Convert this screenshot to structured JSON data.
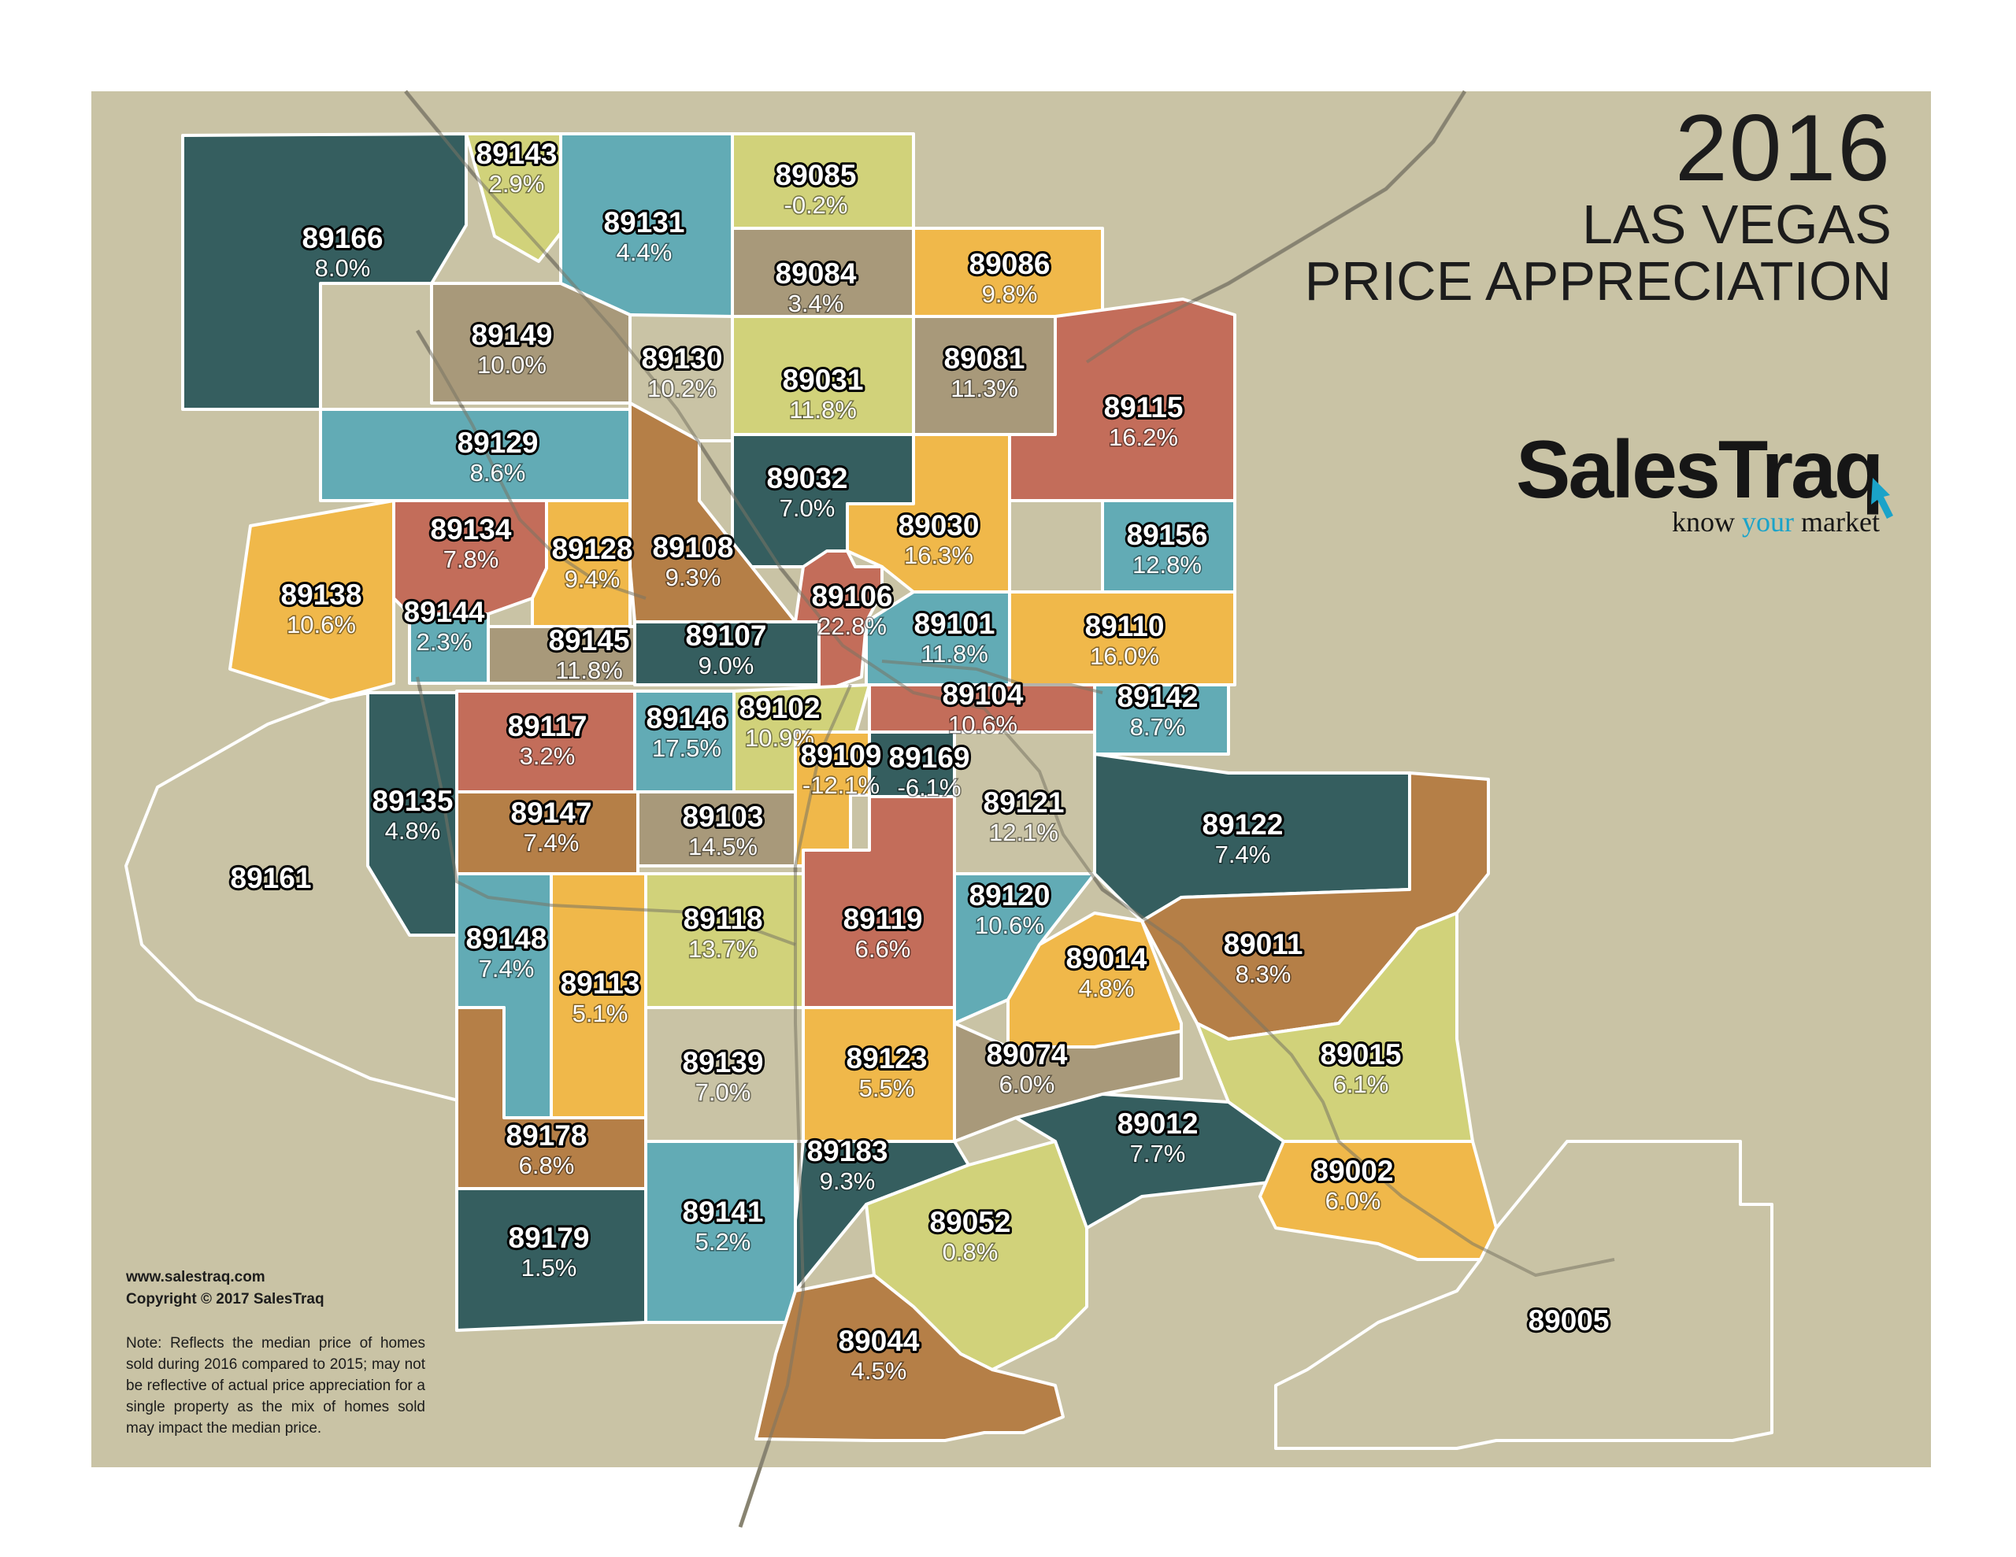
{
  "title": {
    "year": "2016",
    "line1": "LAS VEGAS",
    "line2": "PRICE APPRECIATION"
  },
  "brand": {
    "name": "SalesTraq",
    "tagline_a": "know ",
    "tagline_b": "your",
    "tagline_c": " market"
  },
  "footer": {
    "url": "www.salestraq.com",
    "copyright": "Copyright © 2017 SalesTraq",
    "note": "Note: Reflects the median price of homes sold during 2016 compared to 2015; may not be reflective of actual price appreciation for a single property as the mix of homes sold may impact the median price."
  },
  "colors": {
    "background": "#c9c3a5",
    "dark_teal": "#355e5f",
    "teal": "#62abb5",
    "yellow": "#f0b84a",
    "lime": "#d1d27a",
    "taupe": "#a8997a",
    "brick": "#c36d5a",
    "copper": "#b57f47",
    "light_taupe": "#c9c3a5",
    "border": "#ffffff",
    "road": "#9a9480",
    "accent": "#1aa3c9"
  },
  "zip_codes": [
    {
      "zip": "89166",
      "change": "8.0%",
      "color": "dark_teal"
    },
    {
      "zip": "89143",
      "change": "2.9%",
      "color": "lime"
    },
    {
      "zip": "89131",
      "change": "4.4%",
      "color": "teal"
    },
    {
      "zip": "89085",
      "change": "-0.2%",
      "color": "lime"
    },
    {
      "zip": "89084",
      "change": "3.4%",
      "color": "taupe"
    },
    {
      "zip": "89086",
      "change": "9.8%",
      "color": "yellow"
    },
    {
      "zip": "89149",
      "change": "10.0%",
      "color": "taupe"
    },
    {
      "zip": "89130",
      "change": "10.2%",
      "color": "light_taupe"
    },
    {
      "zip": "89031",
      "change": "11.8%",
      "color": "lime"
    },
    {
      "zip": "89081",
      "change": "11.3%",
      "color": "taupe"
    },
    {
      "zip": "89115",
      "change": "16.2%",
      "color": "brick"
    },
    {
      "zip": "89129",
      "change": "8.6%",
      "color": "teal"
    },
    {
      "zip": "89032",
      "change": "7.0%",
      "color": "dark_teal"
    },
    {
      "zip": "89030",
      "change": "16.3%",
      "color": "yellow"
    },
    {
      "zip": "89156",
      "change": "12.8%",
      "color": "teal"
    },
    {
      "zip": "89134",
      "change": "7.8%",
      "color": "brick"
    },
    {
      "zip": "89128",
      "change": "9.4%",
      "color": "yellow"
    },
    {
      "zip": "89108",
      "change": "9.3%",
      "color": "copper"
    },
    {
      "zip": "89138",
      "change": "10.6%",
      "color": "yellow"
    },
    {
      "zip": "89106",
      "change": "22.8%",
      "color": "brick"
    },
    {
      "zip": "89101",
      "change": "11.8%",
      "color": "teal"
    },
    {
      "zip": "89110",
      "change": "16.0%",
      "color": "yellow"
    },
    {
      "zip": "89144",
      "change": "2.3%",
      "color": "teal"
    },
    {
      "zip": "89145",
      "change": "11.8%",
      "color": "taupe"
    },
    {
      "zip": "89107",
      "change": "9.0%",
      "color": "dark_teal"
    },
    {
      "zip": "89117",
      "change": "3.2%",
      "color": "brick"
    },
    {
      "zip": "89146",
      "change": "17.5%",
      "color": "teal"
    },
    {
      "zip": "89102",
      "change": "10.9%",
      "color": "lime"
    },
    {
      "zip": "89104",
      "change": "10.6%",
      "color": "brick"
    },
    {
      "zip": "89142",
      "change": "8.7%",
      "color": "teal"
    },
    {
      "zip": "89109",
      "change": "-12.1%",
      "color": "yellow"
    },
    {
      "zip": "89169",
      "change": "-6.1%",
      "color": "dark_teal"
    },
    {
      "zip": "89135",
      "change": "4.8%",
      "color": "dark_teal"
    },
    {
      "zip": "89147",
      "change": "7.4%",
      "color": "copper"
    },
    {
      "zip": "89103",
      "change": "14.5%",
      "color": "taupe"
    },
    {
      "zip": "89121",
      "change": "12.1%",
      "color": "light_taupe"
    },
    {
      "zip": "89122",
      "change": "7.4%",
      "color": "dark_teal"
    },
    {
      "zip": "89161",
      "change": "",
      "color": "light_taupe"
    },
    {
      "zip": "89148",
      "change": "7.4%",
      "color": "teal"
    },
    {
      "zip": "89118",
      "change": "13.7%",
      "color": "lime"
    },
    {
      "zip": "89119",
      "change": "6.6%",
      "color": "brick"
    },
    {
      "zip": "89120",
      "change": "10.6%",
      "color": "teal"
    },
    {
      "zip": "89014",
      "change": "4.8%",
      "color": "yellow"
    },
    {
      "zip": "89011",
      "change": "8.3%",
      "color": "copper"
    },
    {
      "zip": "89113",
      "change": "5.1%",
      "color": "yellow"
    },
    {
      "zip": "89139",
      "change": "7.0%",
      "color": "light_taupe"
    },
    {
      "zip": "89123",
      "change": "5.5%",
      "color": "yellow"
    },
    {
      "zip": "89074",
      "change": "6.0%",
      "color": "taupe"
    },
    {
      "zip": "89015",
      "change": "6.1%",
      "color": "lime"
    },
    {
      "zip": "89178",
      "change": "6.8%",
      "color": "copper"
    },
    {
      "zip": "89012",
      "change": "7.7%",
      "color": "dark_teal"
    },
    {
      "zip": "89183",
      "change": "9.3%",
      "color": "dark_teal"
    },
    {
      "zip": "89002",
      "change": "6.0%",
      "color": "yellow"
    },
    {
      "zip": "89179",
      "change": "1.5%",
      "color": "dark_teal"
    },
    {
      "zip": "89141",
      "change": "5.2%",
      "color": "teal"
    },
    {
      "zip": "89052",
      "change": "0.8%",
      "color": "lime"
    },
    {
      "zip": "89044",
      "change": "4.5%",
      "color": "copper"
    },
    {
      "zip": "89005",
      "change": "",
      "color": "light_taupe"
    }
  ]
}
